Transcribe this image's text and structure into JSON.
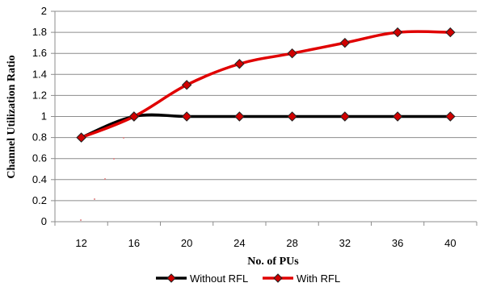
{
  "chart_data": {
    "type": "line",
    "xlabel": "No. of PUs",
    "ylabel": "Channel Utilization Ratio",
    "categories": [
      "12",
      "16",
      "20",
      "24",
      "28",
      "32",
      "36",
      "40"
    ],
    "ylim": [
      0,
      2
    ],
    "yticks": [
      "0",
      "0.2",
      "0.4",
      "0.6",
      "0.8",
      "1",
      "1.2",
      "1.4",
      "1.6",
      "1.8",
      "2"
    ],
    "grid": "horizontal",
    "legend_position": "bottom",
    "series": [
      {
        "name": "Without RFL",
        "values": [
          0.8,
          1,
          1,
          1,
          1,
          1,
          1,
          1
        ],
        "color": "#000000"
      },
      {
        "name": "With RFL",
        "values": [
          0.8,
          1,
          1.3,
          1.5,
          1.6,
          1.7,
          1.8,
          1.8
        ],
        "color": "#e00000"
      }
    ],
    "marker_color": "#d00000"
  }
}
